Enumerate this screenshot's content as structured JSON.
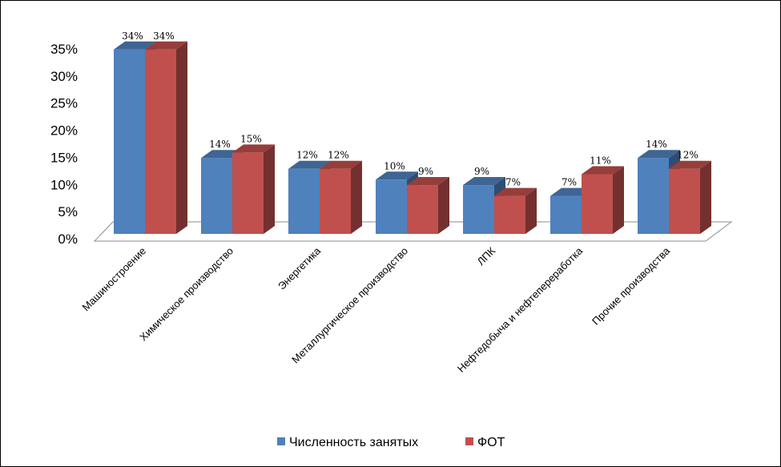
{
  "chart_data": {
    "type": "bar",
    "categories": [
      "Машиностроение",
      "Химическое производство",
      "Энергетика",
      "Металлургическое производство",
      "ЛПК",
      "Нефтедобыча и нефтепереработка",
      "Прочие производства"
    ],
    "series": [
      {
        "name": "Численность занятых",
        "color": "#4f81bd",
        "values": [
          34,
          14,
          12,
          10,
          9,
          7,
          14
        ]
      },
      {
        "name": "ФОТ",
        "color": "#c0504d",
        "values": [
          34,
          15,
          12,
          9,
          7,
          11,
          12
        ]
      }
    ],
    "yticks": [
      "0%",
      "5%",
      "10%",
      "15%",
      "20%",
      "25%",
      "30%",
      "35%"
    ],
    "ylim": [
      0,
      35
    ],
    "grid": false,
    "legend": "bottom",
    "bar_style": "3d"
  }
}
